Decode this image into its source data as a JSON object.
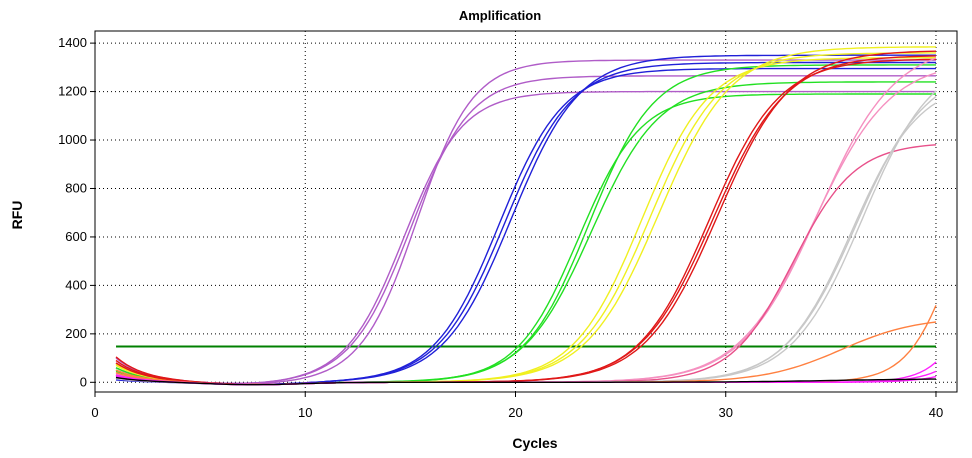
{
  "chart_data": {
    "type": "line",
    "title": "Amplification",
    "xlabel": "Cycles",
    "ylabel": "RFU",
    "xlim": [
      0,
      41
    ],
    "ylim": [
      -40,
      1450
    ],
    "x_ticks": [
      0,
      10,
      20,
      30,
      40
    ],
    "y_ticks": [
      0,
      200,
      400,
      600,
      800,
      1000,
      1200,
      1400
    ],
    "grid": true,
    "legend": "none",
    "threshold": {
      "value": 148,
      "color": "#008000"
    },
    "series": [
      {
        "color": "#B05CC8",
        "plateau": 1330,
        "midpoint": 15.3,
        "slope": 0.75,
        "start": 100
      },
      {
        "color": "#B05CC8",
        "plateau": 1265,
        "midpoint": 15.0,
        "slope": 0.7,
        "start": 80
      },
      {
        "color": "#B05CC8",
        "plateau": 1200,
        "midpoint": 14.7,
        "slope": 0.72,
        "start": 60
      },
      {
        "color": "#2020D8",
        "plateau": 1350,
        "midpoint": 19.8,
        "slope": 0.62,
        "start": 30
      },
      {
        "color": "#2020D8",
        "plateau": 1320,
        "midpoint": 19.5,
        "slope": 0.63,
        "start": 20
      },
      {
        "color": "#2020D8",
        "plateau": 1295,
        "midpoint": 19.2,
        "slope": 0.65,
        "start": 10
      },
      {
        "color": "#22E022",
        "plateau": 1310,
        "midpoint": 23.5,
        "slope": 0.65,
        "start": 50
      },
      {
        "color": "#22E022",
        "plateau": 1240,
        "midpoint": 23.6,
        "slope": 0.62,
        "start": 60
      },
      {
        "color": "#22E022",
        "plateau": 1190,
        "midpoint": 23.0,
        "slope": 0.68,
        "start": 45
      },
      {
        "color": "#F0F020",
        "plateau": 1385,
        "midpoint": 26.8,
        "slope": 0.58,
        "start": 70
      },
      {
        "color": "#F0F020",
        "plateau": 1360,
        "midpoint": 26.4,
        "slope": 0.6,
        "start": 75
      },
      {
        "color": "#F0F020",
        "plateau": 1340,
        "midpoint": 26.0,
        "slope": 0.62,
        "start": 40
      },
      {
        "color": "#E01818",
        "plateau": 1370,
        "midpoint": 29.6,
        "slope": 0.58,
        "start": 105
      },
      {
        "color": "#E01818",
        "plateau": 1350,
        "midpoint": 29.4,
        "slope": 0.58,
        "start": 90
      },
      {
        "color": "#E01818",
        "plateau": 1335,
        "midpoint": 29.2,
        "slope": 0.6,
        "start": 80
      },
      {
        "color": "#F590C0",
        "plateau": 1400,
        "midpoint": 34.4,
        "slope": 0.55,
        "start": 40
      },
      {
        "color": "#F590C0",
        "plateau": 1330,
        "midpoint": 34.2,
        "slope": 0.55,
        "start": 35
      },
      {
        "color": "#E8508A",
        "plateau": 990,
        "midpoint": 33.2,
        "slope": 0.68,
        "start": 30
      },
      {
        "color": "#C8C8C8",
        "plateau": 1350,
        "midpoint": 36.5,
        "slope": 0.6,
        "start": 25
      },
      {
        "color": "#C8C8C8",
        "plateau": 1300,
        "midpoint": 36.2,
        "slope": 0.6,
        "start": 20
      },
      {
        "color": "#C8C8C8",
        "plateau": 1250,
        "midpoint": 36.0,
        "slope": 0.62,
        "start": 15
      },
      {
        "color": "#FF8040",
        "plateau": 1100,
        "midpoint": 41.0,
        "slope": 0.9,
        "start": 50
      },
      {
        "color": "#FF8040",
        "plateau": 270,
        "midpoint": 35.5,
        "slope": 0.55,
        "start": 40
      },
      {
        "color": "#FF20FF",
        "plateau": 1100,
        "midpoint": 42.5,
        "slope": 1.0,
        "start": 30
      },
      {
        "color": "#FF20FF",
        "plateau": 1100,
        "midpoint": 43.5,
        "slope": 0.9,
        "start": 25
      },
      {
        "color": "#FF20FF",
        "plateau": 1100,
        "midpoint": 44.5,
        "slope": 0.85,
        "start": 20
      },
      {
        "color": "#000000",
        "plateau": 15,
        "midpoint": 35.0,
        "slope": 0.4,
        "start": 20
      }
    ]
  }
}
